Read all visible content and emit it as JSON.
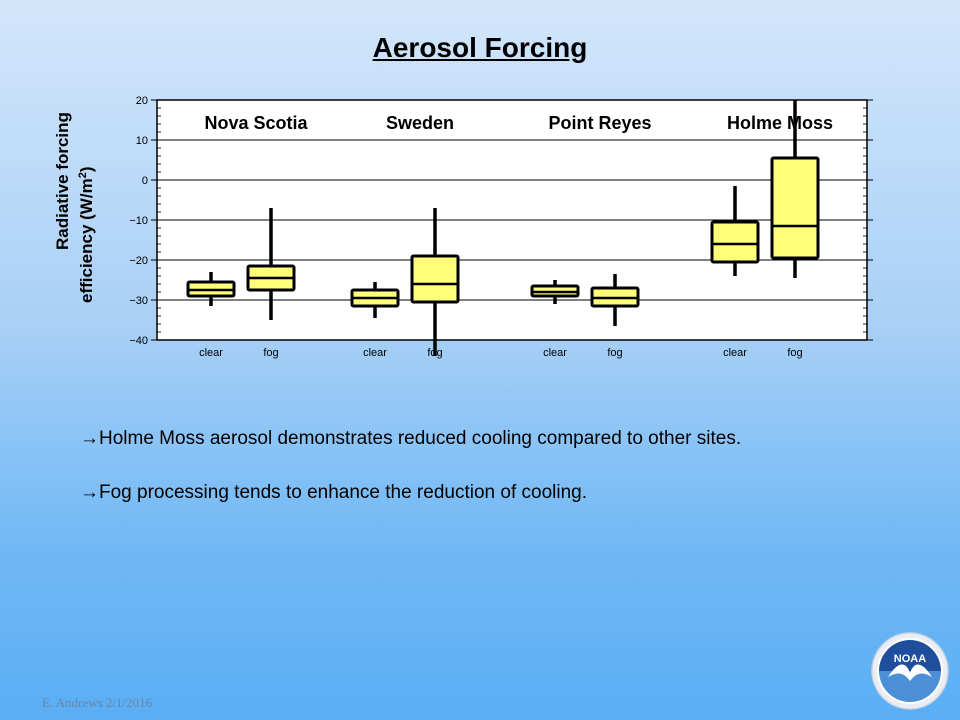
{
  "slide": {
    "title": "Aerosol Forcing",
    "bullets": [
      "→Holme Moss aerosol demonstrates reduced cooling compared to other sites.",
      "→Fog processing tends to enhance the reduction of cooling."
    ],
    "footer": "E. Andrews   2/1/2016",
    "logo_text": "NOAA",
    "logo_icon": "noaa-logo-icon"
  },
  "chart_data": {
    "type": "box",
    "ylabel_line1": "Radiative forcing",
    "ylabel_line2": "efficiency (W/m",
    "ylabel_sup": "2",
    "ylabel_end": ")",
    "ylim": [
      -40,
      20
    ],
    "yticks": [
      20,
      10,
      0,
      -10,
      -20,
      -30,
      -40
    ],
    "ytick_labels": [
      "20",
      "10",
      "0",
      "−10",
      "−20",
      "−30",
      "−40"
    ],
    "grid": true,
    "box_color": "#ffff77",
    "groups": [
      {
        "site": "Nova Scotia",
        "categories": [
          "clear",
          "fog"
        ]
      },
      {
        "site": "Sweden",
        "categories": [
          "clear",
          "fog"
        ]
      },
      {
        "site": "Point Reyes",
        "categories": [
          "clear",
          "fog"
        ]
      },
      {
        "site": "Holme Moss",
        "categories": [
          "clear",
          "fog"
        ]
      }
    ],
    "boxes": [
      {
        "site": "Nova Scotia",
        "category": "clear",
        "min": -31.5,
        "q1": -29,
        "median": -27.5,
        "q3": -25.5,
        "max": -23
      },
      {
        "site": "Nova Scotia",
        "category": "fog",
        "min": -35,
        "q1": -27.5,
        "median": -24.5,
        "q3": -21.5,
        "max": -7
      },
      {
        "site": "Sweden",
        "category": "clear",
        "min": -34.5,
        "q1": -31.5,
        "median": -29.5,
        "q3": -27.5,
        "max": -25.5
      },
      {
        "site": "Sweden",
        "category": "fog",
        "min": -44,
        "q1": -30.5,
        "median": -26,
        "q3": -19,
        "max": -7
      },
      {
        "site": "Point Reyes",
        "category": "clear",
        "min": -31,
        "q1": -29,
        "median": -28,
        "q3": -26.5,
        "max": -25
      },
      {
        "site": "Point Reyes",
        "category": "fog",
        "min": -36.5,
        "q1": -31.5,
        "median": -29.5,
        "q3": -27,
        "max": -23.5
      },
      {
        "site": "Holme Moss",
        "category": "clear",
        "min": -24,
        "q1": -20.5,
        "median": -16,
        "q3": -10.5,
        "max": -1.5
      },
      {
        "site": "Holme Moss",
        "category": "fog",
        "min": -24.5,
        "q1": -19.5,
        "median": -11.5,
        "q3": 5.5,
        "max": 20
      }
    ]
  }
}
